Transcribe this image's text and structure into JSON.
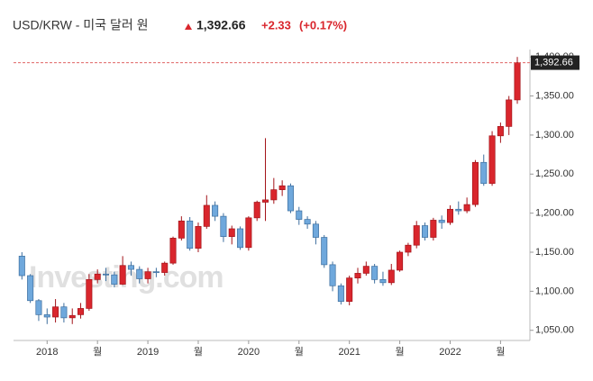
{
  "header": {
    "symbol": "USD/KRW - 미국 달러 원",
    "price": "1,392.66",
    "change": "+2.33",
    "change_pct": "(+0.17%)"
  },
  "chart_data": {
    "type": "candlestick",
    "watermark": "Investing.com",
    "open": [
      1145,
      1120,
      1088,
      1070,
      1067,
      1080,
      1066,
      1070,
      1078,
      1115,
      1122,
      1121,
      1109,
      1133,
      1128,
      1116,
      1125,
      1124,
      1136,
      1168,
      1190,
      1155,
      1183,
      1210,
      1196,
      1170,
      1180,
      1156,
      1194,
      1214,
      1217,
      1230,
      1235,
      1203,
      1192,
      1186,
      1169,
      1134,
      1107,
      1087,
      1117,
      1123,
      1132,
      1115,
      1111,
      1127,
      1150,
      1159,
      1184,
      1169,
      1191,
      1188,
      1205,
      1203,
      1211,
      1265,
      1238,
      1299,
      1311,
      1345
    ],
    "high": [
      1150,
      1122,
      1090,
      1078,
      1090,
      1085,
      1078,
      1085,
      1122,
      1128,
      1130,
      1125,
      1145,
      1138,
      1132,
      1130,
      1130,
      1138,
      1170,
      1196,
      1195,
      1188,
      1223,
      1215,
      1200,
      1184,
      1183,
      1196,
      1216,
      1296,
      1245,
      1242,
      1238,
      1208,
      1196,
      1190,
      1172,
      1138,
      1110,
      1120,
      1130,
      1138,
      1135,
      1125,
      1135,
      1152,
      1162,
      1190,
      1188,
      1194,
      1197,
      1210,
      1215,
      1220,
      1268,
      1275,
      1305,
      1316,
      1350,
      1400
    ],
    "low": [
      1115,
      1085,
      1062,
      1058,
      1060,
      1060,
      1058,
      1065,
      1075,
      1110,
      1113,
      1105,
      1108,
      1120,
      1110,
      1110,
      1118,
      1120,
      1134,
      1165,
      1152,
      1150,
      1180,
      1190,
      1163,
      1160,
      1153,
      1152,
      1190,
      1190,
      1212,
      1222,
      1200,
      1185,
      1180,
      1160,
      1130,
      1100,
      1083,
      1082,
      1110,
      1120,
      1110,
      1107,
      1108,
      1125,
      1145,
      1155,
      1165,
      1165,
      1180,
      1185,
      1198,
      1200,
      1208,
      1235,
      1235,
      1290,
      1300,
      1340
    ],
    "close": [
      1120,
      1088,
      1070,
      1067,
      1080,
      1066,
      1069,
      1078,
      1115,
      1122,
      1121,
      1109,
      1133,
      1128,
      1116,
      1125,
      1124,
      1136,
      1168,
      1190,
      1155,
      1183,
      1210,
      1196,
      1170,
      1180,
      1156,
      1194,
      1214,
      1217,
      1230,
      1235,
      1203,
      1192,
      1186,
      1169,
      1134,
      1107,
      1087,
      1117,
      1123,
      1132,
      1115,
      1111,
      1127,
      1150,
      1159,
      1184,
      1169,
      1191,
      1188,
      1205,
      1203,
      1211,
      1265,
      1238,
      1299,
      1311,
      1345,
      1392.66
    ],
    "up_color": "#d9262d",
    "down_color": "#6fa8dc",
    "xlim": [
      -1,
      60.5
    ],
    "xticks": [
      {
        "value": 3,
        "label": "2018"
      },
      {
        "value": 9,
        "label": "월"
      },
      {
        "value": 15,
        "label": "2019"
      },
      {
        "value": 21,
        "label": "월"
      },
      {
        "value": 27,
        "label": "2020"
      },
      {
        "value": 33,
        "label": "월"
      },
      {
        "value": 39,
        "label": "2021"
      },
      {
        "value": 45,
        "label": "월"
      },
      {
        "value": 51,
        "label": "2022"
      },
      {
        "value": 57,
        "label": "월"
      }
    ],
    "ylim": [
      1037,
      1406
    ],
    "yticks": [
      {
        "value": 1050,
        "label": "1,050.00"
      },
      {
        "value": 1100,
        "label": "1,100.00"
      },
      {
        "value": 1150,
        "label": "1,150.00"
      },
      {
        "value": 1200,
        "label": "1,200.00"
      },
      {
        "value": 1250,
        "label": "1,250.00"
      },
      {
        "value": 1300,
        "label": "1,300.00"
      },
      {
        "value": 1350,
        "label": "1,350.00"
      },
      {
        "value": 1400,
        "label": "1,400.00"
      }
    ],
    "grid": false
  }
}
